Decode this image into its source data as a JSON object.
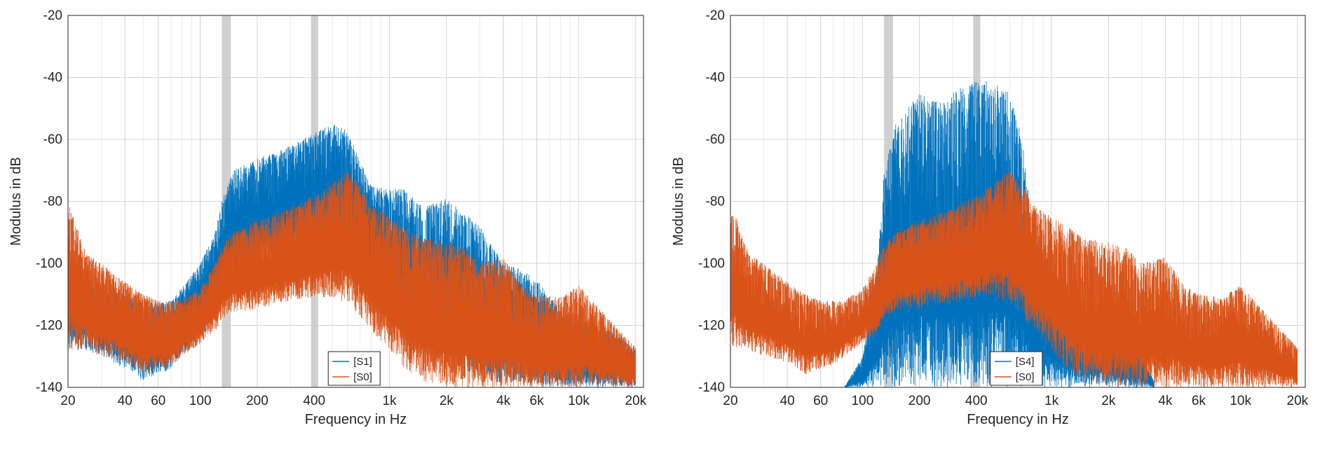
{
  "chart_data": [
    {
      "type": "line",
      "panel": "left",
      "x_scale": "log",
      "xlabel": "Frequency in Hz",
      "ylabel": "Modulus in dB",
      "xlim": [
        20,
        22000
      ],
      "ylim": [
        -140,
        -20
      ],
      "x_ticks": [
        20,
        40,
        60,
        100,
        200,
        400,
        1000,
        2000,
        4000,
        6000,
        10000,
        20000
      ],
      "x_tick_labels": [
        "20",
        "40",
        "60",
        "100",
        "200",
        "400",
        "1k",
        "2k",
        "4k",
        "6k",
        "10k",
        "20k"
      ],
      "y_ticks": [
        -140,
        -120,
        -100,
        -80,
        -60,
        -40,
        -20
      ],
      "y_tick_labels": [
        "-140",
        "-120",
        "-100",
        "-80",
        "-60",
        "-40",
        "-20"
      ],
      "grid": true,
      "legend_position": "bottom-center",
      "shaded_bands": [
        [
          130,
          145
        ],
        [
          385,
          420
        ]
      ],
      "series": [
        {
          "name": "[S1]",
          "color": "#0072BD",
          "x": [
            20,
            25,
            30,
            40,
            50,
            60,
            70,
            80,
            100,
            120,
            130,
            150,
            200,
            250,
            300,
            400,
            500,
            600,
            700,
            800,
            1000,
            1200,
            1500,
            2000,
            2500,
            3000,
            4000,
            5000,
            6000,
            8000,
            10000,
            15000,
            20000
          ],
          "upper": [
            -95,
            -103,
            -107,
            -110,
            -112,
            -113,
            -112,
            -108,
            -100,
            -90,
            -80,
            -70,
            -66,
            -64,
            -62,
            -58,
            -55,
            -57,
            -67,
            -75,
            -76,
            -76,
            -82,
            -79,
            -84,
            -88,
            -100,
            -102,
            -105,
            -115,
            -118,
            -122,
            -128
          ],
          "lower": [
            -128,
            -128,
            -130,
            -134,
            -138,
            -136,
            -134,
            -130,
            -125,
            -118,
            -110,
            -105,
            -100,
            -100,
            -97,
            -96,
            -97,
            -100,
            -108,
            -112,
            -118,
            -125,
            -130,
            -132,
            -135,
            -137,
            -139,
            -139,
            -140,
            -140,
            -140,
            -140,
            -140
          ]
        },
        {
          "name": "[S0]",
          "color": "#D95319",
          "x": [
            20,
            25,
            30,
            40,
            50,
            60,
            70,
            80,
            100,
            120,
            130,
            150,
            200,
            250,
            300,
            400,
            500,
            600,
            700,
            800,
            1000,
            1200,
            1500,
            2000,
            2500,
            3000,
            4000,
            5000,
            6000,
            8000,
            10000,
            15000,
            20000
          ],
          "upper": [
            -80,
            -97,
            -100,
            -106,
            -110,
            -112,
            -112,
            -112,
            -108,
            -100,
            -94,
            -90,
            -86,
            -84,
            -82,
            -78,
            -74,
            -70,
            -75,
            -81,
            -85,
            -88,
            -92,
            -93,
            -95,
            -100,
            -98,
            -107,
            -110,
            -111,
            -107,
            -119,
            -127
          ],
          "lower": [
            -128,
            -128,
            -130,
            -132,
            -136,
            -134,
            -133,
            -130,
            -126,
            -122,
            -118,
            -116,
            -115,
            -113,
            -113,
            -111,
            -111,
            -113,
            -117,
            -122,
            -128,
            -134,
            -138,
            -140,
            -140,
            -140,
            -140,
            -140,
            -140,
            -140,
            -140,
            -140,
            -140
          ]
        }
      ]
    },
    {
      "type": "line",
      "panel": "right",
      "x_scale": "log",
      "xlabel": "Frequency in Hz",
      "ylabel": "Modulus in dB",
      "xlim": [
        20,
        22000
      ],
      "ylim": [
        -140,
        -20
      ],
      "x_ticks": [
        20,
        40,
        60,
        100,
        200,
        400,
        1000,
        2000,
        4000,
        6000,
        10000,
        20000
      ],
      "x_tick_labels": [
        "20",
        "40",
        "60",
        "100",
        "200",
        "400",
        "1k",
        "2k",
        "4k",
        "6k",
        "10k",
        "20k"
      ],
      "y_ticks": [
        -140,
        -120,
        -100,
        -80,
        -60,
        -40,
        -20
      ],
      "y_tick_labels": [
        "-140",
        "-120",
        "-100",
        "-80",
        "-60",
        "-40",
        "-20"
      ],
      "grid": true,
      "legend_position": "bottom-center",
      "shaded_bands": [
        [
          130,
          145
        ],
        [
          385,
          420
        ]
      ],
      "series": [
        {
          "name": "[S4]",
          "color": "#0072BD",
          "x": [
            20,
            40,
            60,
            80,
            100,
            120,
            130,
            150,
            200,
            250,
            300,
            400,
            500,
            600,
            700,
            800,
            1000,
            1200,
            1500,
            2000,
            2500,
            3000,
            3500
          ],
          "upper": [
            -140,
            -140,
            -140,
            -140,
            -130,
            -100,
            -70,
            -55,
            -45,
            -48,
            -45,
            -40,
            -42,
            -45,
            -60,
            -90,
            -100,
            -110,
            -115,
            -120,
            -125,
            -130,
            -138
          ],
          "lower": [
            -140,
            -140,
            -140,
            -140,
            -140,
            -140,
            -140,
            -140,
            -140,
            -140,
            -140,
            -140,
            -140,
            -140,
            -140,
            -140,
            -140,
            -140,
            -140,
            -140,
            -140,
            -140,
            -140
          ]
        },
        {
          "name": "[S0]",
          "color": "#D95319",
          "x": [
            20,
            25,
            30,
            40,
            50,
            60,
            70,
            80,
            100,
            120,
            130,
            150,
            200,
            250,
            300,
            400,
            500,
            600,
            700,
            800,
            1000,
            1200,
            1500,
            2000,
            2500,
            3000,
            4000,
            5000,
            6000,
            8000,
            10000,
            15000,
            20000
          ],
          "upper": [
            -80,
            -97,
            -100,
            -106,
            -110,
            -112,
            -112,
            -112,
            -108,
            -100,
            -94,
            -90,
            -86,
            -84,
            -82,
            -78,
            -74,
            -70,
            -75,
            -81,
            -85,
            -88,
            -92,
            -93,
            -95,
            -100,
            -98,
            -107,
            -110,
            -111,
            -107,
            -119,
            -127
          ],
          "lower": [
            -128,
            -128,
            -130,
            -132,
            -136,
            -134,
            -133,
            -130,
            -126,
            -122,
            -118,
            -116,
            -115,
            -113,
            -113,
            -111,
            -111,
            -113,
            -117,
            -122,
            -128,
            -134,
            -138,
            -140,
            -140,
            -140,
            -140,
            -140,
            -140,
            -140,
            -140,
            -140,
            -140
          ]
        }
      ]
    }
  ]
}
